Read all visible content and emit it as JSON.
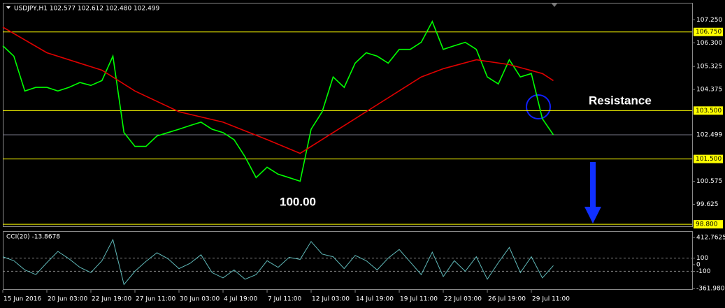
{
  "chart_data": [
    {
      "type": "line",
      "title": "USDJPY,H1 102.577 102.612 102.480 102.499",
      "annotations": [
        {
          "text": "Resistance"
        },
        {
          "text": "100.00"
        }
      ],
      "x": [
        0,
        1,
        2,
        3,
        4,
        5,
        6,
        7,
        8,
        9,
        10,
        11,
        12,
        13,
        14,
        15,
        16,
        17,
        18,
        19,
        20,
        21,
        22,
        23,
        24,
        25,
        26,
        27,
        28,
        29,
        30,
        31,
        32,
        33,
        34,
        35,
        36,
        37,
        38,
        39,
        40,
        41,
        42,
        43,
        44,
        45,
        46,
        47,
        48,
        49,
        50
      ],
      "xlim": [
        0,
        62.6
      ],
      "xticks": [
        {
          "value": 0,
          "label": "15 Jun 2016"
        },
        {
          "value": 4,
          "label": "20 Jun 03:00"
        },
        {
          "value": 8,
          "label": "22 Jun 19:00"
        },
        {
          "value": 12,
          "label": "27 Jun 11:00"
        },
        {
          "value": 16,
          "label": "30 Jun 03:00"
        },
        {
          "value": 20,
          "label": "4 Jul 19:00"
        },
        {
          "value": 24,
          "label": "7 Jul 11:00"
        },
        {
          "value": 28,
          "label": "12 Jul 03:00"
        },
        {
          "value": 32,
          "label": "14 Jul 19:00"
        },
        {
          "value": 36,
          "label": "19 Jul 11:00"
        },
        {
          "value": 40,
          "label": "22 Jul 03:00"
        },
        {
          "value": 44,
          "label": "26 Jul 19:00"
        },
        {
          "value": 48,
          "label": "29 Jul 11:00"
        }
      ],
      "series": [
        {
          "color": "#00ff00",
          "values": [
            106.18,
            105.75,
            104.31,
            104.46,
            104.46,
            104.31,
            104.46,
            104.66,
            104.54,
            104.74,
            105.75,
            102.59,
            102.02,
            102.02,
            102.45,
            102.59,
            102.73,
            102.88,
            103.02,
            102.73,
            102.59,
            102.3,
            101.59,
            100.73,
            101.16,
            100.87,
            100.73,
            100.58,
            102.73,
            103.45,
            104.89,
            104.46,
            105.46,
            105.89,
            105.75,
            105.46,
            106.03,
            106.03,
            106.32,
            107.18,
            106.03,
            106.18,
            106.32,
            106.03,
            104.89,
            104.6,
            105.6,
            104.89,
            105.03,
            103.16,
            102.499
          ]
        },
        {
          "color": "#e00000",
          "x": [
            0,
            4,
            9,
            12,
            16,
            20,
            24,
            27,
            30,
            34,
            38,
            40,
            43,
            46,
            49,
            50
          ],
          "values": [
            106.95,
            105.89,
            105.17,
            104.31,
            103.45,
            103.02,
            102.3,
            101.73,
            102.59,
            103.74,
            104.89,
            105.23,
            105.6,
            105.4,
            105.03,
            104.74
          ]
        }
      ],
      "ylim": [
        98.717,
        107.926
      ],
      "yticks": [
        {
          "value": 107.25,
          "label": "107.250"
        },
        {
          "value": 106.3,
          "label": "106.300"
        },
        105.325,
        104.375,
        100.575,
        99.625
      ],
      "levels": [
        {
          "value": 106.75,
          "label": "106.750"
        },
        {
          "value": 103.5,
          "label": "103.500"
        },
        {
          "value": 101.5,
          "label": "101.500"
        },
        {
          "value": 98.8,
          "label": "98.800"
        }
      ],
      "last_price": 102.499
    },
    {
      "type": "line",
      "title": "CCI(20) -13.8678",
      "x": [
        0,
        1,
        2,
        3,
        4,
        5,
        6,
        7,
        8,
        9,
        10,
        11,
        12,
        13,
        14,
        15,
        16,
        17,
        18,
        19,
        20,
        21,
        22,
        23,
        24,
        25,
        26,
        27,
        28,
        29,
        30,
        31,
        32,
        33,
        34,
        35,
        36,
        37,
        38,
        39,
        40,
        41,
        42,
        43,
        44,
        45,
        46,
        47,
        48,
        49,
        50
      ],
      "xlim": [
        0,
        62.6
      ],
      "series": [
        {
          "color": "#5fb8b8",
          "values": [
            120,
            60,
            -80,
            -150,
            30,
            200,
            90,
            -40,
            -120,
            60,
            380,
            -300,
            -100,
            50,
            180,
            90,
            -60,
            20,
            150,
            -120,
            -200,
            -80,
            -220,
            -150,
            60,
            -40,
            110,
            80,
            350,
            160,
            120,
            -60,
            140,
            60,
            -80,
            100,
            230,
            40,
            -150,
            190,
            -180,
            60,
            -100,
            120,
            -220,
            30,
            260,
            -120,
            120,
            -200,
            -13.8678
          ]
        }
      ],
      "ylim": [
        -370,
        496
      ],
      "yticks": [
        412.7625,
        100,
        0,
        -100,
        -361.9809
      ],
      "dashed": [
        100,
        -100
      ]
    }
  ]
}
